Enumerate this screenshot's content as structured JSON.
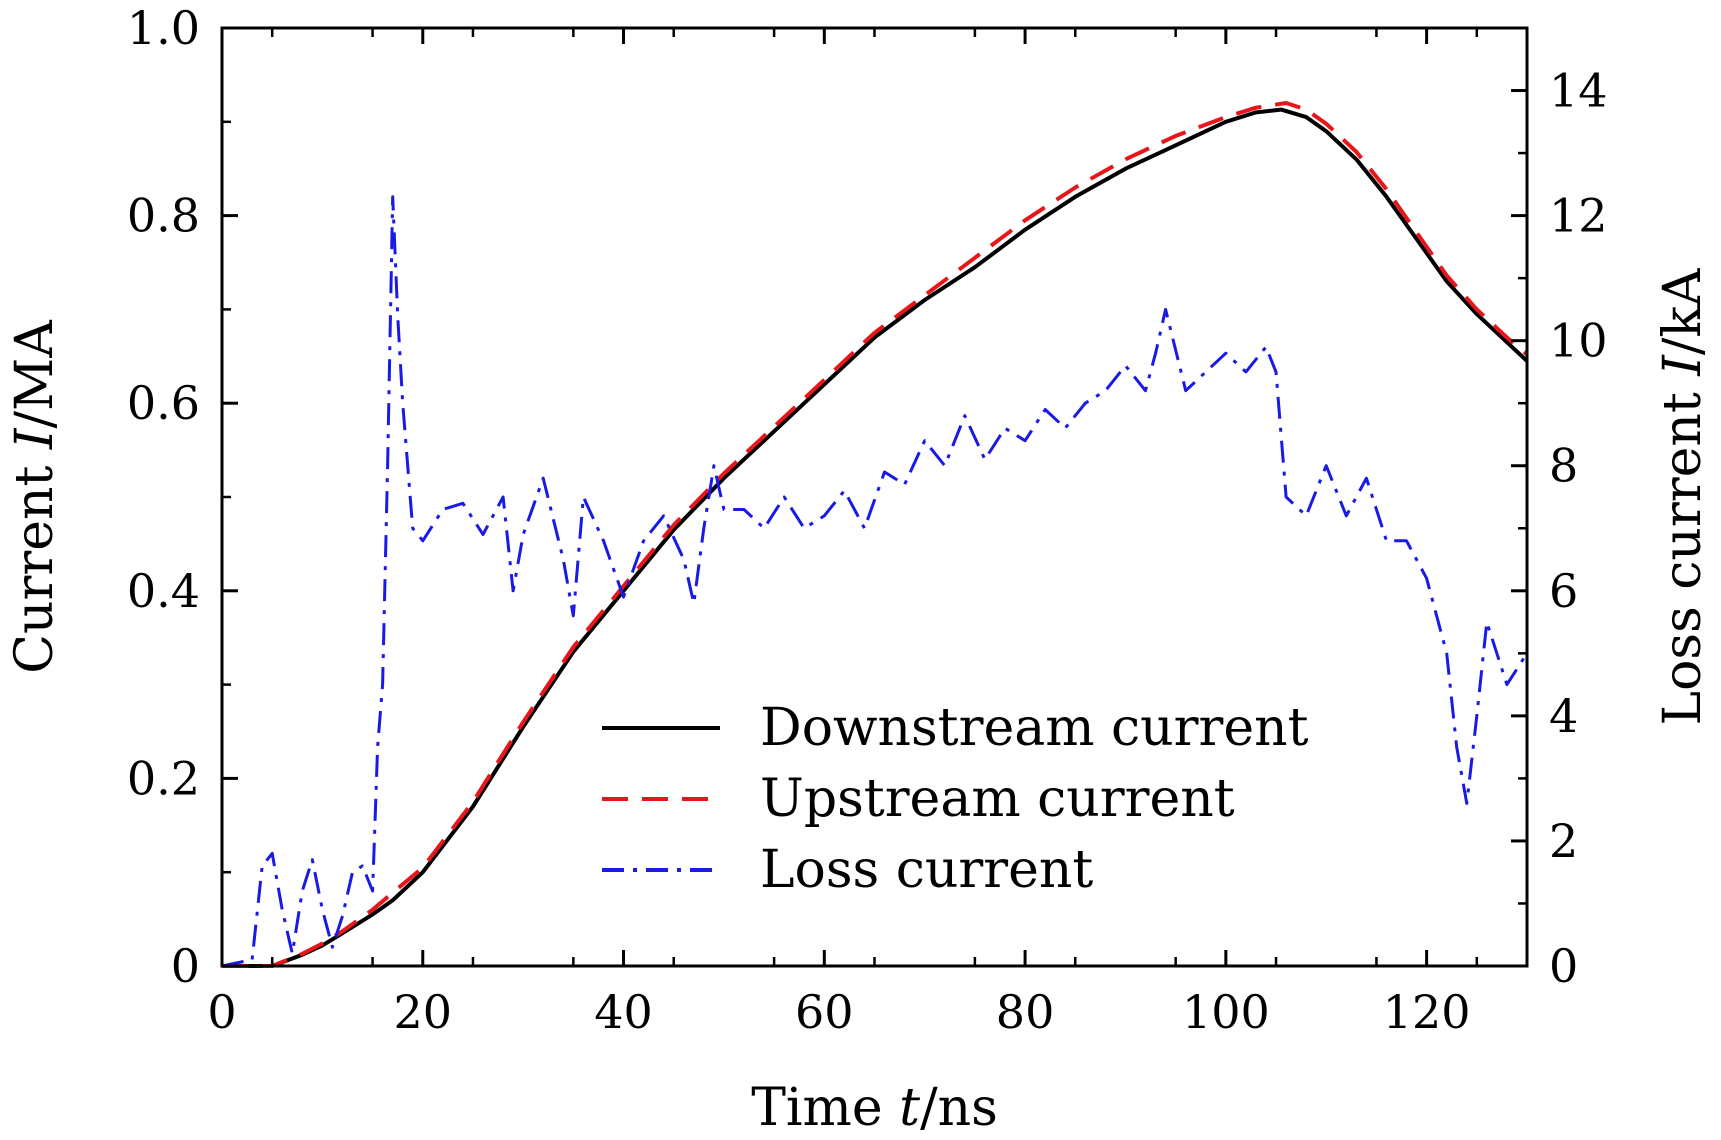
{
  "chart_data": {
    "type": "line",
    "xlabel": {
      "pre": "Time ",
      "var": "t",
      "post": "/ns"
    },
    "ylabel_left": {
      "pre": "Current ",
      "var": "I",
      "post": "/MA"
    },
    "ylabel_right": {
      "pre": "Loss current ",
      "var": "I",
      "post": "/kA"
    },
    "xlim": [
      0,
      130
    ],
    "ylim_left": [
      0,
      1.0
    ],
    "ylim_right": [
      0,
      15
    ],
    "x_ticks": [
      "0",
      "20",
      "40",
      "60",
      "80",
      "100",
      "120"
    ],
    "y_left_ticks": [
      "0",
      "0.2",
      "0.4",
      "0.6",
      "0.8",
      "1.0"
    ],
    "y_right_ticks": [
      "0",
      "2",
      "4",
      "6",
      "8",
      "10",
      "12",
      "14"
    ],
    "grid": false,
    "legend_position": "center-bottom",
    "series": [
      {
        "name": "Downstream current",
        "axis": "left",
        "color": "#000000",
        "style": "solid",
        "x": [
          0,
          5,
          8,
          10,
          12,
          15,
          17,
          20,
          25,
          30,
          35,
          40,
          45,
          50,
          55,
          60,
          65,
          70,
          75,
          80,
          85,
          90,
          95,
          100,
          103,
          105.5,
          108,
          110,
          113,
          116,
          119,
          122,
          125,
          128,
          130
        ],
        "y": [
          0,
          0,
          0.012,
          0.022,
          0.035,
          0.055,
          0.07,
          0.1,
          0.17,
          0.255,
          0.335,
          0.4,
          0.465,
          0.52,
          0.57,
          0.62,
          0.67,
          0.71,
          0.745,
          0.785,
          0.82,
          0.85,
          0.875,
          0.9,
          0.91,
          0.913,
          0.905,
          0.89,
          0.86,
          0.82,
          0.775,
          0.73,
          0.695,
          0.665,
          0.645
        ]
      },
      {
        "name": "Upstream current",
        "axis": "left",
        "color": "#e8151b",
        "style": "dashed",
        "x": [
          0,
          5,
          8,
          10,
          12,
          15,
          17,
          20,
          25,
          30,
          35,
          40,
          45,
          50,
          55,
          60,
          65,
          70,
          75,
          80,
          85,
          90,
          95,
          100,
          103,
          106,
          108,
          110,
          113,
          116,
          119,
          122,
          125,
          128,
          130
        ],
        "y": [
          0,
          0,
          0.013,
          0.024,
          0.037,
          0.06,
          0.078,
          0.105,
          0.175,
          0.26,
          0.34,
          0.405,
          0.47,
          0.525,
          0.575,
          0.625,
          0.675,
          0.715,
          0.755,
          0.795,
          0.83,
          0.86,
          0.885,
          0.905,
          0.915,
          0.92,
          0.913,
          0.898,
          0.868,
          0.828,
          0.782,
          0.736,
          0.7,
          0.67,
          0.652
        ]
      },
      {
        "name": "Loss current",
        "axis": "right",
        "color": "#1a1ae6",
        "style": "dashdot",
        "x": [
          0,
          3,
          4,
          5,
          6,
          7,
          8,
          9,
          10,
          11,
          12,
          13,
          14,
          15,
          15.5,
          16,
          16.5,
          17,
          17.5,
          18,
          19,
          20,
          22,
          24,
          26,
          28,
          29,
          30,
          32,
          34,
          35,
          36,
          38,
          40,
          42,
          44,
          46,
          47,
          48,
          49,
          50,
          52,
          54,
          56,
          58,
          60,
          62,
          64,
          66,
          68,
          70,
          72,
          74,
          76,
          78,
          80,
          82,
          84,
          86,
          88,
          90,
          92,
          93,
          94,
          96,
          98,
          100,
          102,
          104,
          105,
          106,
          108,
          110,
          112,
          114,
          116,
          118,
          120,
          122,
          123,
          124,
          125,
          126,
          128,
          130
        ],
        "y": [
          0,
          0.1,
          1.6,
          1.8,
          0.9,
          0.2,
          1.2,
          1.7,
          0.9,
          0.3,
          0.8,
          1.5,
          1.6,
          1.2,
          3.5,
          4.5,
          8.0,
          12.3,
          10.4,
          9.0,
          7.0,
          6.8,
          7.3,
          7.4,
          6.9,
          7.5,
          6.0,
          6.9,
          7.8,
          6.5,
          5.6,
          7.5,
          6.8,
          5.9,
          6.8,
          7.2,
          6.5,
          5.8,
          7.0,
          8.0,
          7.3,
          7.3,
          7.0,
          7.5,
          7.0,
          7.2,
          7.6,
          7.0,
          7.9,
          7.7,
          8.4,
          8.0,
          8.8,
          8.1,
          8.6,
          8.4,
          8.9,
          8.6,
          9.0,
          9.2,
          9.6,
          9.2,
          9.8,
          10.5,
          9.2,
          9.5,
          9.8,
          9.5,
          9.9,
          9.5,
          7.5,
          7.2,
          8.0,
          7.2,
          7.8,
          6.8,
          6.8,
          6.2,
          5.0,
          3.5,
          2.6,
          4.0,
          5.5,
          4.5,
          5.0
        ]
      }
    ]
  }
}
